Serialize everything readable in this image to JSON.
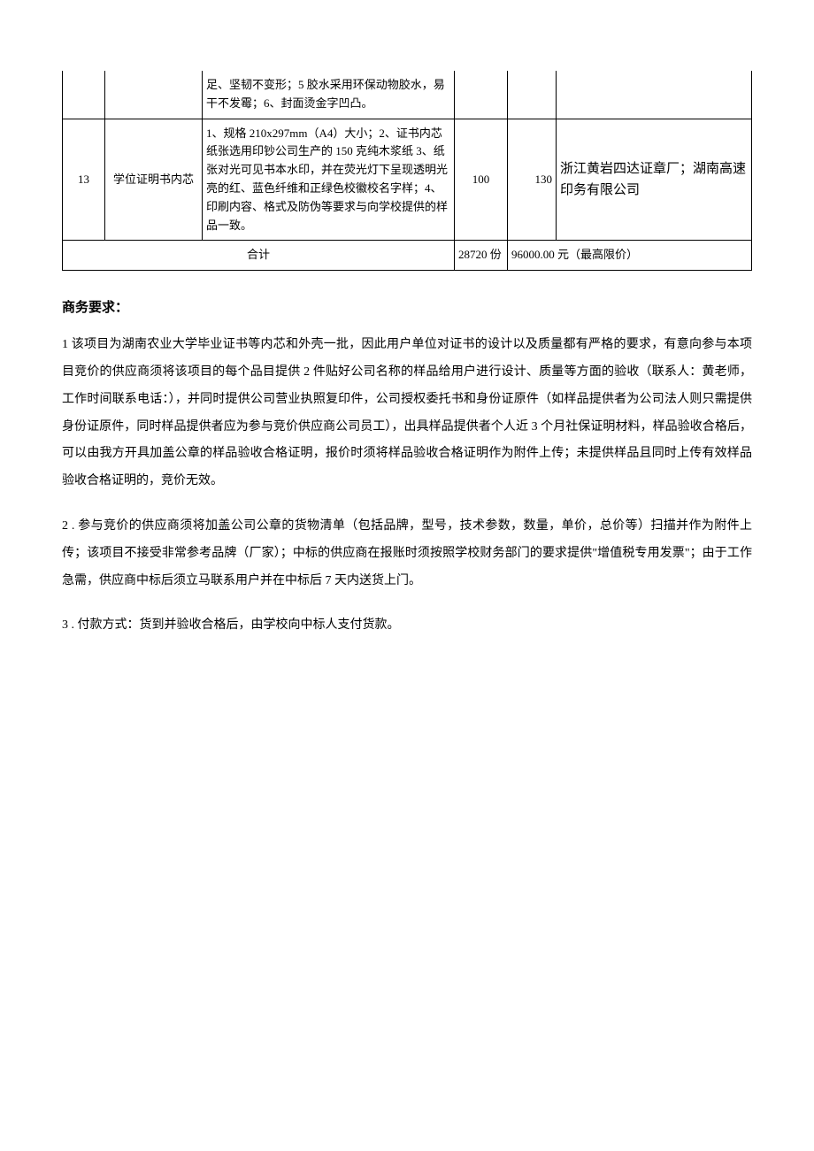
{
  "table": {
    "partial_row": {
      "spec": "足、坚韧不变形；5 胶水采用环保动物胶水，易干不发霉；6、封面烫金字凹凸。",
      "num": "",
      "name": "",
      "qty": "",
      "price": "",
      "supplier": ""
    },
    "row_13": {
      "num": "13",
      "name": "学位证明书内芯",
      "spec": "1、规格 210x297mm（A4）大小；2、证书内芯纸张选用印钞公司生产的 150 克纯木浆纸 3、纸张对光可见书本水印，并在荧光灯下呈现透明光亮的红、蓝色纤维和正绿色校徽校名字样；4、印刷内容、格式及防伪等要求与向学校提供的样品一致。",
      "qty": "100",
      "price": "130",
      "supplier": "浙江黄岩四达证章厂；湖南高速印务有限公司"
    },
    "total_row": {
      "label": "合计",
      "qty": "28720 份",
      "total": "96000.00 元（最高限价）"
    }
  },
  "heading": "商务要求：",
  "paragraphs": {
    "p1": "1 该项目为湖南农业大学毕业证书等内芯和外壳一批，因此用户单位对证书的设计以及质量都有严格的要求，有意向参与本项目竞价的供应商须将该项目的每个品目提供 2 件贴好公司名称的样品给用户进行设计、质量等方面的验收（联系人：黄老师，工作时间联系电话：），并同时提供公司营业执照复印件，公司授权委托书和身份证原件（如样品提供者为公司法人则只需提供身份证原件，同时样品提供者应为参与竞价供应商公司员工），出具样品提供者个人近 3 个月社保证明材料，样品验收合格后，可以由我方开具加盖公章的样品验收合格证明，报价时须将样品验收合格证明作为附件上传；未提供样品且同时上传有效样品验收合格证明的，竞价无效。",
    "p2": "2 . 参与竞价的供应商须将加盖公司公章的货物清单（包括品牌，型号，技术参数，数量，单价，总价等）扫描并作为附件上传；该项目不接受非常参考品牌（厂家）；中标的供应商在报账时须按照学校财务部门的要求提供\"增值税专用发票\"；由于工作急需，供应商中标后须立马联系用户并在中标后 7 天内送货上门。",
    "p3": "3 . 付款方式：货到并验收合格后，由学校向中标人支付货款。"
  }
}
